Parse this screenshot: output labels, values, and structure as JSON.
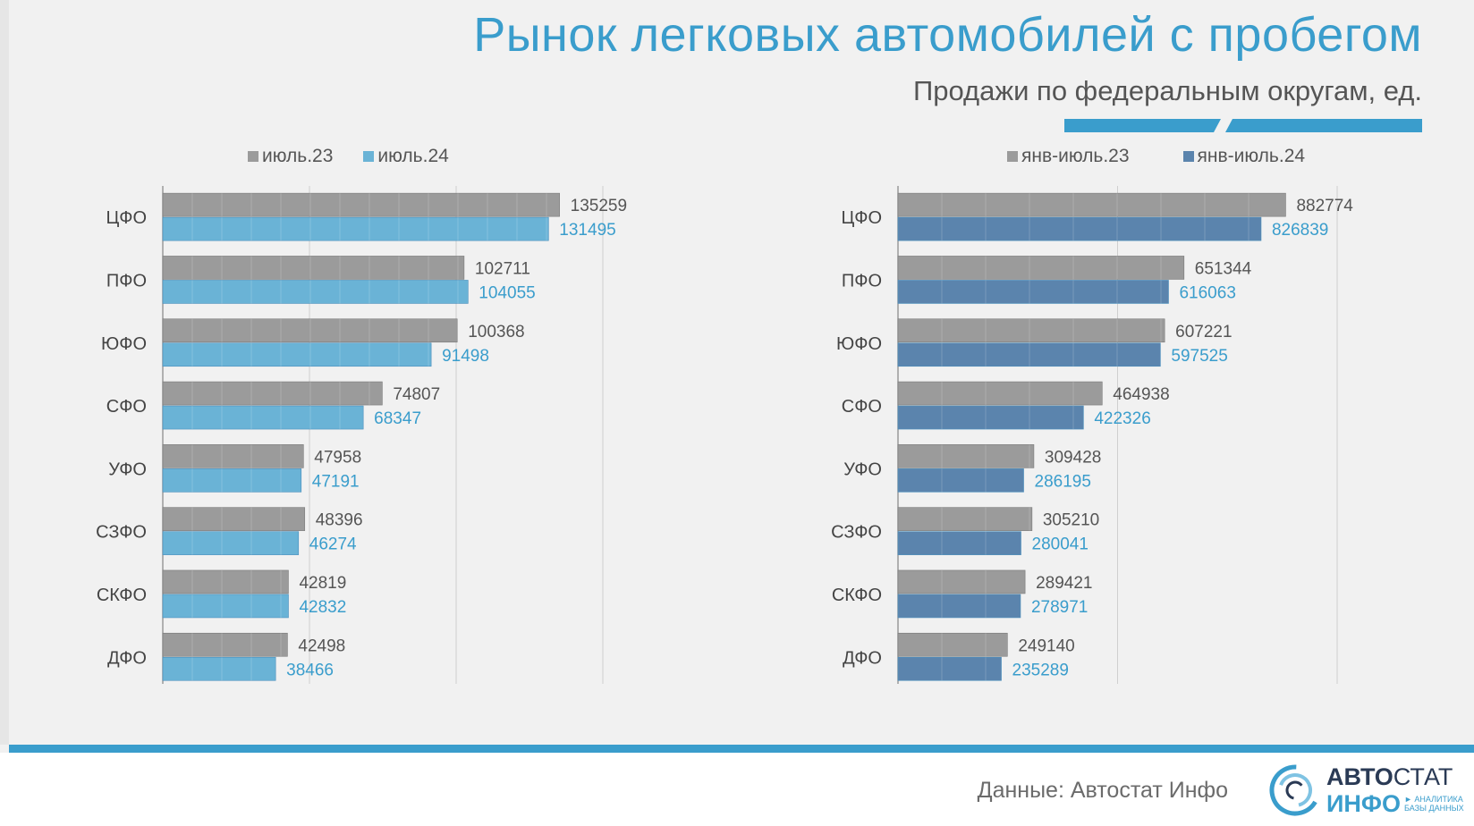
{
  "title": "Рынок легковых автомобилей с пробегом",
  "subtitle": "Продажи по федеральным округам, ед.",
  "colors": {
    "title": "#3a9dcc",
    "gray_bar": "#9b9b9b",
    "light_blue_bar": "#6ab3d6",
    "dark_blue_bar": "#5b84ad",
    "light_blue_label": "#3a9dcc",
    "gray_label": "#555555"
  },
  "chart_data": [
    {
      "type": "bar",
      "orientation": "horizontal",
      "categories": [
        "ЦФО",
        "ПФО",
        "ЮФО",
        "СФО",
        "УФО",
        "СЗФО",
        "СКФО",
        "ДФО"
      ],
      "series": [
        {
          "name": "июль.23",
          "values": [
            135259,
            102711,
            100368,
            74807,
            47958,
            48396,
            42819,
            42498
          ]
        },
        {
          "name": "июль.24",
          "values": [
            131495,
            104055,
            91498,
            68347,
            47191,
            46274,
            42832,
            38466
          ]
        }
      ],
      "xlim": [
        0,
        150000
      ],
      "grid_step": 50000,
      "grid": true,
      "legend": "top"
    },
    {
      "type": "bar",
      "orientation": "horizontal",
      "categories": [
        "ЦФО",
        "ПФО",
        "ЮФО",
        "СФО",
        "УФО",
        "СЗФО",
        "СКФО",
        "ДФО"
      ],
      "series": [
        {
          "name": "янв-июль.23",
          "values": [
            882774,
            651344,
            607221,
            464938,
            309428,
            305210,
            289421,
            249140
          ]
        },
        {
          "name": "янв-июль.24",
          "values": [
            826839,
            616063,
            597525,
            422326,
            286195,
            280041,
            278971,
            235289
          ]
        }
      ],
      "xlim": [
        0,
        1000000
      ],
      "grid_step": 500000,
      "grid": true,
      "legend": "top"
    }
  ],
  "footer": {
    "source": "Данные: Автостат Инфо",
    "logo_line1_bold": "АВТО",
    "logo_line1_light": "СТАТ",
    "logo_line2": "ИНФО",
    "logo_tagline_1": "► АНАЛИТИКА",
    "logo_tagline_2": "БАЗЫ ДАННЫХ"
  }
}
